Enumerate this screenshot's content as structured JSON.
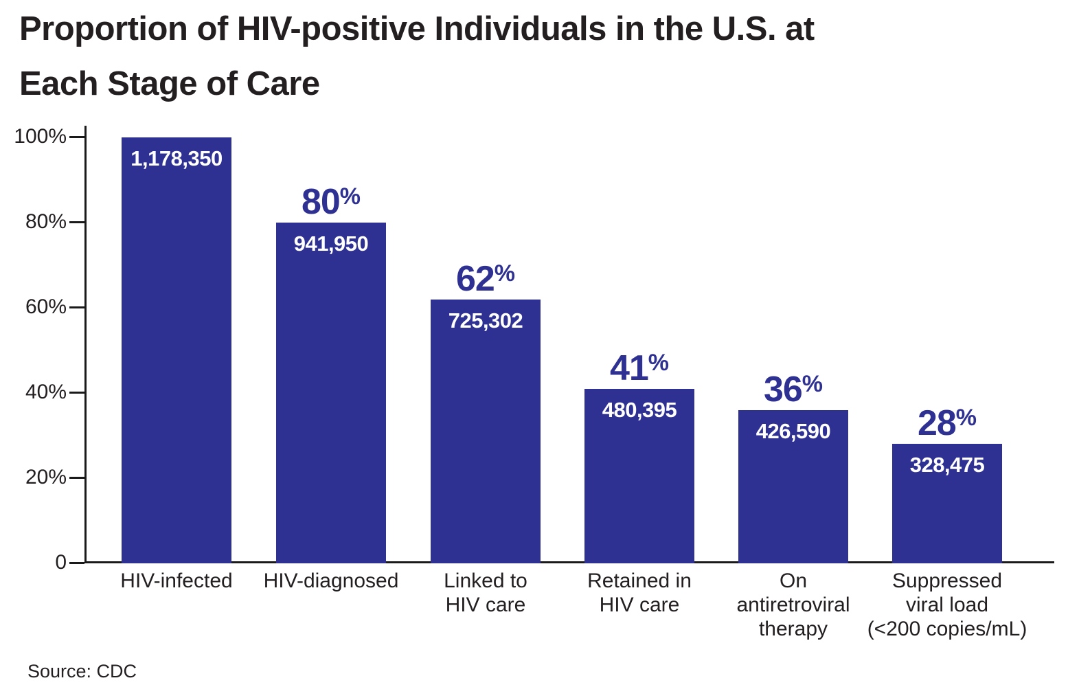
{
  "title_lines": [
    "Proportion of HIV-positive Individuals in the U.S. at",
    "Each Stage of Care"
  ],
  "source": "Source: CDC",
  "colors": {
    "bar": "#2E3192",
    "percent_label": "#2E3192",
    "value_label": "#FFFFFF",
    "axis": "#1A1A1A",
    "text": "#231F20",
    "background": "#FFFFFF"
  },
  "y_axis": {
    "ticks": [
      {
        "label": "100%",
        "value": 100
      },
      {
        "label": "80%",
        "value": 80
      },
      {
        "label": "60%",
        "value": 60
      },
      {
        "label": "40%",
        "value": 40
      },
      {
        "label": "20%",
        "value": 20
      },
      {
        "label": "0",
        "value": 0
      }
    ]
  },
  "chart_data": {
    "type": "bar",
    "title": "Proportion of HIV-positive Individuals in the U.S. at Each Stage of Care",
    "xlabel": "",
    "ylabel": "",
    "ylim": [
      0,
      100
    ],
    "grid": false,
    "legend": null,
    "source": "CDC",
    "categories": [
      "HIV-infected",
      "HIV-diagnosed",
      "Linked to HIV care",
      "Retained in HIV care",
      "On antiretroviral therapy",
      "Suppressed viral load (<200 copies/mL)"
    ],
    "values": [
      100,
      80,
      62,
      41,
      36,
      28
    ],
    "counts": [
      1178350,
      941950,
      725302,
      480395,
      426590,
      328475
    ],
    "bars": [
      {
        "category_lines": [
          "HIV-infected"
        ],
        "percent": 100,
        "percent_label": "",
        "value_label": "1,178,350"
      },
      {
        "category_lines": [
          "HIV-diagnosed"
        ],
        "percent": 80,
        "percent_label": "80%",
        "value_label": "941,950"
      },
      {
        "category_lines": [
          "Linked to",
          "HIV care"
        ],
        "percent": 62,
        "percent_label": "62%",
        "value_label": "725,302"
      },
      {
        "category_lines": [
          "Retained in",
          "HIV care"
        ],
        "percent": 41,
        "percent_label": "41%",
        "value_label": "480,395"
      },
      {
        "category_lines": [
          "On",
          "antiretroviral",
          "therapy"
        ],
        "percent": 36,
        "percent_label": "36%",
        "value_label": "426,590"
      },
      {
        "category_lines": [
          "Suppressed",
          "viral load",
          "(<200 copies/mL)"
        ],
        "percent": 28,
        "percent_label": "28%",
        "value_label": "328,475"
      }
    ]
  }
}
